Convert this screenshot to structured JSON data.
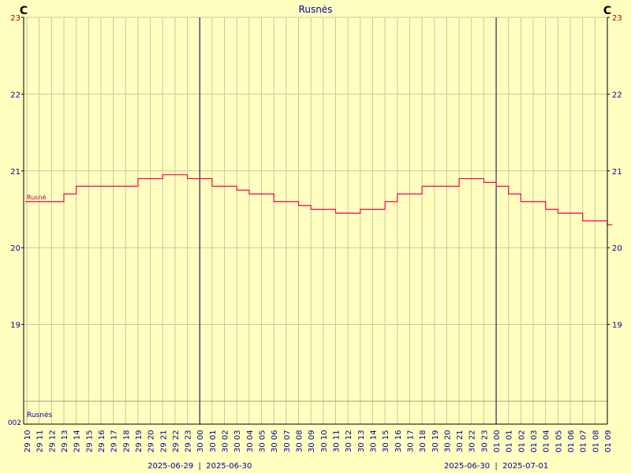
{
  "chart_data": {
    "type": "line",
    "title": "Rusnės",
    "unit_left": "C",
    "unit_right": "C",
    "ylim": [
      18,
      23
    ],
    "y_ticks": [
      19,
      20,
      21,
      22,
      23
    ],
    "bottom_axis_label": "002",
    "inner_label_upper": "Rusnė",
    "inner_label_lower": "Rusnės",
    "x_tick_labels": [
      "29 10",
      "29 11",
      "29 12",
      "29 13",
      "29 14",
      "29 15",
      "29 16",
      "29 17",
      "29 18",
      "29 19",
      "29 20",
      "29 21",
      "29 22",
      "29 23",
      "30 00",
      "30 01",
      "30 02",
      "30 03",
      "30 04",
      "30 05",
      "30 06",
      "30 07",
      "30 08",
      "30 09",
      "30 10",
      "30 11",
      "30 12",
      "30 13",
      "30 14",
      "30 15",
      "30 16",
      "30 17",
      "30 18",
      "30 19",
      "30 20",
      "30 21",
      "30 22",
      "30 23",
      "01 00",
      "01 01",
      "01 02",
      "01 03",
      "01 04",
      "01 05",
      "01 06",
      "01 07",
      "01 08",
      "01 09"
    ],
    "date_labels": [
      "2025-06-29",
      "2025-06-30",
      "2025-06-30",
      "2025-07-01"
    ],
    "day_separators_hours": [
      14,
      38
    ],
    "series": [
      {
        "color": "#ff0050",
        "hours": [
          0,
          2,
          3,
          4,
          6,
          9,
          11,
          12,
          13,
          15,
          17,
          18,
          20,
          22,
          23,
          25,
          27,
          29,
          30,
          32,
          35,
          37,
          38,
          39,
          40,
          42,
          43,
          45,
          47
        ],
        "values": [
          20.6,
          20.6,
          20.7,
          20.8,
          20.8,
          20.9,
          20.95,
          20.95,
          20.9,
          20.8,
          20.75,
          20.7,
          20.6,
          20.55,
          20.5,
          20.45,
          20.5,
          20.6,
          20.7,
          20.8,
          20.9,
          20.85,
          20.8,
          20.7,
          20.6,
          20.5,
          20.45,
          20.35,
          20.3
        ]
      }
    ]
  }
}
